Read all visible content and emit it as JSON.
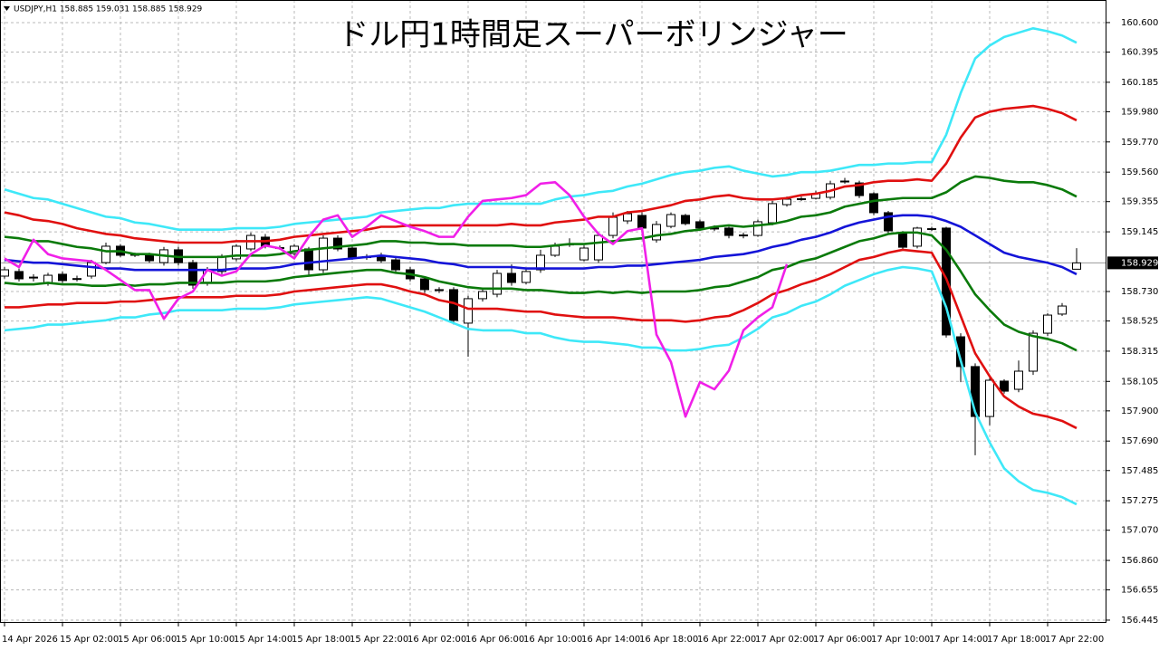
{
  "chart_data": {
    "type": "candlestick",
    "title": "ドル円1時間足スーパーボリンジャー",
    "info": "USDJPY,H1  158.885 159.031 158.885 158.929",
    "grid": true,
    "ylim": [
      156.426,
      160.757
    ],
    "yticks": [
      {
        "value": 160.6,
        "label": "160.600"
      },
      {
        "value": 160.395,
        "label": "160.395"
      },
      {
        "value": 160.185,
        "label": "160.185"
      },
      {
        "value": 159.98,
        "label": "159.980"
      },
      {
        "value": 159.77,
        "label": "159.770"
      },
      {
        "value": 159.56,
        "label": "159.560"
      },
      {
        "value": 159.355,
        "label": "159.355"
      },
      {
        "value": 159.145,
        "label": "159.145"
      },
      {
        "value": 158.73,
        "label": "158.730"
      },
      {
        "value": 158.525,
        "label": "158.525"
      },
      {
        "value": 158.315,
        "label": "158.315"
      },
      {
        "value": 158.105,
        "label": "158.105"
      },
      {
        "value": 157.9,
        "label": "157.900"
      },
      {
        "value": 157.69,
        "label": "157.690"
      },
      {
        "value": 157.485,
        "label": "157.485"
      },
      {
        "value": 157.275,
        "label": "157.275"
      },
      {
        "value": 157.07,
        "label": "157.070"
      },
      {
        "value": 156.86,
        "label": "156.860"
      },
      {
        "value": 156.655,
        "label": "156.655"
      },
      {
        "value": 156.445,
        "label": "156.445"
      }
    ],
    "last_price": 158.929,
    "categories": [
      "14 Apr 2026",
      null,
      null,
      null,
      "15 Apr 02:00",
      null,
      null,
      null,
      "15 Apr 06:00",
      null,
      null,
      null,
      "15 Apr 10:00",
      null,
      null,
      null,
      "15 Apr 14:00",
      null,
      null,
      null,
      "15 Apr 18:00",
      null,
      null,
      null,
      "15 Apr 22:00",
      null,
      null,
      null,
      "16 Apr 02:00",
      null,
      null,
      null,
      "16 Apr 06:00",
      null,
      null,
      null,
      "16 Apr 10:00",
      null,
      null,
      null,
      "16 Apr 14:00",
      null,
      null,
      null,
      "16 Apr 18:00",
      null,
      null,
      null,
      "16 Apr 22:00",
      null,
      null,
      null,
      "17 Apr 02:00",
      null,
      null,
      null,
      "17 Apr 06:00",
      null,
      null,
      null,
      "17 Apr 10:00",
      null,
      null,
      null,
      "17 Apr 14:00",
      null,
      null,
      null,
      "17 Apr 18:00",
      null,
      null,
      null,
      "17 Apr 22:00",
      null,
      null
    ],
    "open": [
      158.837,
      158.869,
      158.824,
      158.793,
      158.85,
      158.818,
      158.837,
      158.931,
      159.045,
      158.988,
      158.982,
      158.931,
      159.02,
      158.931,
      158.793,
      158.869,
      158.957,
      159.026,
      159.108,
      159.032,
      158.994,
      159.026,
      158.881,
      159.101,
      159.032,
      158.969,
      158.982,
      158.95,
      158.881,
      158.818,
      158.743,
      158.743,
      158.51,
      158.68,
      158.711,
      158.856,
      158.793,
      158.881,
      158.982,
      159.057,
      158.95,
      158.95,
      159.12,
      159.221,
      159.259,
      159.089,
      159.183,
      159.259,
      159.215,
      159.171,
      159.171,
      159.12,
      159.12,
      159.208,
      159.334,
      159.372,
      159.378,
      159.385,
      159.498,
      159.485,
      159.41,
      159.278,
      159.139,
      159.045,
      159.164,
      159.171,
      158.415,
      158.208,
      157.861,
      158.107,
      158.05,
      158.176,
      158.44,
      158.573,
      158.885
    ],
    "high": [
      158.9,
      158.89,
      158.85,
      158.86,
      158.87,
      158.84,
      158.95,
      159.07,
      159.06,
      159.0,
      159.0,
      159.04,
      159.04,
      158.95,
      158.9,
      158.99,
      159.06,
      159.14,
      159.13,
      159.05,
      159.06,
      159.04,
      159.12,
      159.12,
      159.05,
      158.99,
      159.0,
      158.97,
      158.9,
      158.83,
      158.76,
      158.76,
      158.7,
      158.75,
      158.88,
      158.92,
      158.89,
      159.02,
      159.07,
      159.1,
      159.05,
      159.14,
      159.28,
      159.29,
      159.28,
      159.22,
      159.28,
      159.27,
      159.23,
      159.19,
      159.18,
      159.14,
      159.23,
      159.36,
      159.39,
      159.39,
      159.43,
      159.5,
      159.52,
      159.5,
      159.42,
      159.29,
      159.15,
      159.18,
      159.18,
      159.18,
      158.44,
      158.23,
      158.13,
      158.12,
      158.25,
      158.46,
      158.58,
      158.65,
      159.031
    ],
    "low": [
      158.82,
      158.8,
      158.8,
      158.77,
      158.79,
      158.8,
      158.82,
      158.92,
      158.97,
      158.97,
      158.93,
      158.91,
      158.91,
      158.75,
      158.77,
      158.85,
      158.94,
      159.01,
      159.03,
      159.02,
      158.98,
      158.84,
      158.86,
      159.01,
      158.95,
      158.95,
      158.93,
      158.86,
      158.8,
      158.72,
      158.72,
      158.5,
      158.277,
      158.66,
      158.69,
      158.77,
      158.78,
      158.86,
      158.97,
      159.04,
      158.94,
      158.93,
      159.1,
      159.2,
      159.12,
      159.07,
      159.17,
      159.19,
      159.15,
      159.15,
      159.1,
      159.1,
      159.11,
      159.19,
      159.32,
      159.36,
      159.37,
      159.37,
      159.48,
      159.38,
      159.26,
      159.13,
      159.02,
      159.03,
      159.15,
      158.41,
      158.1,
      157.591,
      157.8,
      158.02,
      158.03,
      158.15,
      158.42,
      158.56,
      158.885
    ],
    "close": [
      158.881,
      158.818,
      158.83,
      158.843,
      158.806,
      158.82,
      158.931,
      159.045,
      158.982,
      158.985,
      158.944,
      159.02,
      158.931,
      158.774,
      158.881,
      158.975,
      159.045,
      159.12,
      159.045,
      159.035,
      159.045,
      158.881,
      159.101,
      159.026,
      158.969,
      158.972,
      158.944,
      158.881,
      158.818,
      158.743,
      158.74,
      158.529,
      158.68,
      158.73,
      158.856,
      158.793,
      158.869,
      158.982,
      159.045,
      159.06,
      159.032,
      159.12,
      159.246,
      159.271,
      159.171,
      159.196,
      159.265,
      159.202,
      159.171,
      159.168,
      159.12,
      159.123,
      159.215,
      159.341,
      159.372,
      159.375,
      159.41,
      159.479,
      159.495,
      159.397,
      159.278,
      159.152,
      159.038,
      159.171,
      159.167,
      158.428,
      158.208,
      157.861,
      158.113,
      158.037,
      158.176,
      158.44,
      158.566,
      158.629,
      158.929
    ],
    "lines": [
      {
        "color": "#3ee8f8",
        "values": [
          159.44,
          159.41,
          159.38,
          159.37,
          159.34,
          159.31,
          159.28,
          159.25,
          159.24,
          159.21,
          159.2,
          159.18,
          159.16,
          159.16,
          159.16,
          159.16,
          159.17,
          159.17,
          159.17,
          159.18,
          159.2,
          159.21,
          159.22,
          159.23,
          159.24,
          159.25,
          159.28,
          159.29,
          159.3,
          159.31,
          159.31,
          159.33,
          159.34,
          159.34,
          159.34,
          159.34,
          159.34,
          159.34,
          159.37,
          159.39,
          159.4,
          159.42,
          159.43,
          159.46,
          159.48,
          159.51,
          159.54,
          159.56,
          159.57,
          159.59,
          159.6,
          159.57,
          159.55,
          159.53,
          159.54,
          159.56,
          159.56,
          159.57,
          159.59,
          159.61,
          159.61,
          159.62,
          159.62,
          159.63,
          159.63,
          159.82,
          160.11,
          160.35,
          160.44,
          160.5,
          160.53,
          160.56,
          160.54,
          160.51,
          160.46
        ]
      },
      {
        "color": "#3ee8f8",
        "values": [
          158.46,
          158.47,
          158.48,
          158.5,
          158.5,
          158.51,
          158.52,
          158.53,
          158.55,
          158.55,
          158.57,
          158.58,
          158.6,
          158.6,
          158.6,
          158.6,
          158.61,
          158.61,
          158.61,
          158.62,
          158.64,
          158.65,
          158.66,
          158.67,
          158.68,
          158.69,
          158.68,
          158.65,
          158.62,
          158.59,
          158.55,
          158.51,
          158.47,
          158.46,
          158.46,
          158.46,
          158.44,
          158.44,
          158.41,
          158.39,
          158.38,
          158.38,
          158.37,
          158.36,
          158.34,
          158.34,
          158.32,
          158.32,
          158.33,
          158.35,
          158.36,
          158.41,
          158.47,
          158.55,
          158.58,
          158.63,
          158.66,
          158.71,
          158.77,
          158.81,
          158.85,
          158.88,
          158.9,
          158.89,
          158.87,
          158.62,
          158.25,
          157.89,
          157.68,
          157.5,
          157.41,
          157.35,
          157.33,
          157.3,
          157.25
        ]
      },
      {
        "color": "#e01010",
        "values": [
          159.28,
          159.26,
          159.23,
          159.22,
          159.2,
          159.17,
          159.15,
          159.13,
          159.12,
          159.1,
          159.09,
          159.08,
          159.07,
          159.07,
          159.07,
          159.07,
          159.08,
          159.08,
          159.08,
          159.09,
          159.11,
          159.12,
          159.13,
          159.14,
          159.15,
          159.16,
          159.18,
          159.18,
          159.19,
          159.19,
          159.19,
          159.19,
          159.19,
          159.19,
          159.19,
          159.2,
          159.19,
          159.19,
          159.21,
          159.22,
          159.23,
          159.25,
          159.25,
          159.28,
          159.29,
          159.31,
          159.33,
          159.36,
          159.37,
          159.39,
          159.4,
          159.38,
          159.37,
          159.37,
          159.38,
          159.4,
          159.41,
          159.43,
          159.46,
          159.47,
          159.49,
          159.5,
          159.5,
          159.51,
          159.5,
          159.62,
          159.8,
          159.94,
          159.98,
          160.0,
          160.01,
          160.02,
          160.0,
          159.97,
          159.92
        ]
      },
      {
        "color": "#e01010",
        "values": [
          158.62,
          158.62,
          158.63,
          158.64,
          158.64,
          158.65,
          158.65,
          158.65,
          158.66,
          158.66,
          158.67,
          158.68,
          158.69,
          158.69,
          158.69,
          158.69,
          158.7,
          158.7,
          158.7,
          158.71,
          158.73,
          158.74,
          158.75,
          158.76,
          158.77,
          158.78,
          158.78,
          158.76,
          158.73,
          158.71,
          158.67,
          158.65,
          158.61,
          158.61,
          158.61,
          158.6,
          158.59,
          158.59,
          158.57,
          158.56,
          158.55,
          158.55,
          158.55,
          158.54,
          158.53,
          158.53,
          158.53,
          158.52,
          158.53,
          158.55,
          158.56,
          158.6,
          158.65,
          158.71,
          158.74,
          158.78,
          158.81,
          158.85,
          158.9,
          158.95,
          158.97,
          159.0,
          159.02,
          159.01,
          159.0,
          158.82,
          158.56,
          158.3,
          158.14,
          158.0,
          157.93,
          157.88,
          157.86,
          157.83,
          157.78
        ]
      },
      {
        "color": "#0a7a0a",
        "values": [
          159.11,
          159.1,
          159.08,
          159.08,
          159.06,
          159.04,
          159.03,
          159.01,
          159.01,
          158.99,
          158.99,
          158.98,
          158.97,
          158.97,
          158.97,
          158.97,
          158.98,
          158.98,
          158.98,
          158.99,
          159.01,
          159.02,
          159.03,
          159.04,
          159.05,
          159.06,
          159.08,
          159.08,
          159.07,
          159.07,
          159.06,
          159.06,
          159.05,
          159.05,
          159.05,
          159.05,
          159.04,
          159.04,
          159.05,
          159.06,
          159.06,
          159.07,
          159.08,
          159.09,
          159.1,
          159.12,
          159.13,
          159.15,
          159.16,
          159.18,
          159.19,
          159.18,
          159.19,
          159.2,
          159.22,
          159.25,
          159.26,
          159.28,
          159.32,
          159.34,
          159.36,
          159.37,
          159.38,
          159.38,
          159.38,
          159.42,
          159.49,
          159.53,
          159.52,
          159.5,
          159.49,
          159.49,
          159.47,
          159.44,
          159.39
        ]
      },
      {
        "color": "#0a7a0a",
        "values": [
          158.79,
          158.78,
          158.78,
          158.79,
          158.78,
          158.78,
          158.77,
          158.77,
          158.78,
          158.77,
          158.78,
          158.78,
          158.79,
          158.79,
          158.79,
          158.79,
          158.8,
          158.8,
          158.8,
          158.81,
          158.83,
          158.84,
          158.85,
          158.86,
          158.87,
          158.88,
          158.88,
          158.86,
          158.85,
          158.83,
          158.8,
          158.78,
          158.76,
          158.75,
          158.75,
          158.75,
          158.74,
          158.74,
          158.73,
          158.72,
          158.72,
          158.73,
          158.72,
          158.73,
          158.72,
          158.73,
          158.73,
          158.73,
          158.74,
          158.76,
          158.77,
          158.8,
          158.83,
          158.88,
          158.9,
          158.94,
          158.96,
          159.0,
          159.04,
          159.08,
          159.1,
          159.13,
          159.14,
          159.14,
          159.12,
          159.02,
          158.87,
          158.71,
          158.6,
          158.5,
          158.45,
          158.42,
          158.4,
          158.37,
          158.32
        ]
      },
      {
        "color": "#1414d8",
        "values": [
          158.95,
          158.94,
          158.93,
          158.93,
          158.92,
          158.91,
          158.9,
          158.89,
          158.89,
          158.88,
          158.88,
          158.88,
          158.88,
          158.88,
          158.88,
          158.88,
          158.89,
          158.89,
          158.89,
          158.9,
          158.92,
          158.93,
          158.94,
          158.95,
          158.96,
          158.97,
          158.98,
          158.97,
          158.96,
          158.95,
          158.93,
          158.92,
          158.9,
          158.9,
          158.9,
          158.9,
          158.89,
          158.89,
          158.89,
          158.89,
          158.89,
          158.9,
          158.9,
          158.91,
          158.91,
          158.92,
          158.93,
          158.94,
          158.95,
          158.97,
          158.98,
          158.99,
          159.01,
          159.04,
          159.06,
          159.09,
          159.11,
          159.14,
          159.18,
          159.21,
          159.23,
          159.25,
          159.26,
          159.26,
          159.25,
          159.22,
          159.18,
          159.12,
          159.06,
          159.0,
          158.97,
          158.95,
          158.93,
          158.9,
          158.85
        ]
      },
      {
        "color": "#f020e8",
        "values": [
          158.96,
          158.9,
          159.09,
          158.99,
          158.96,
          158.95,
          158.94,
          158.88,
          158.81,
          158.74,
          158.74,
          158.54,
          158.68,
          158.73,
          158.88,
          158.84,
          158.87,
          158.99,
          159.05,
          159.03,
          158.96,
          159.11,
          159.23,
          159.26,
          159.11,
          159.18,
          159.26,
          159.22,
          159.18,
          159.15,
          159.11,
          159.11,
          159.25,
          159.36,
          159.37,
          159.38,
          159.4,
          159.48,
          159.49,
          159.4,
          159.25,
          159.13,
          159.06,
          159.15,
          159.17,
          158.43,
          158.24,
          157.86,
          158.1,
          158.05,
          158.18,
          158.46,
          158.55,
          158.62,
          158.92,
          null,
          null,
          null,
          null,
          null,
          null,
          null,
          null,
          null,
          null,
          null,
          null,
          null,
          null,
          null,
          null,
          null,
          null,
          null,
          null
        ]
      }
    ]
  }
}
